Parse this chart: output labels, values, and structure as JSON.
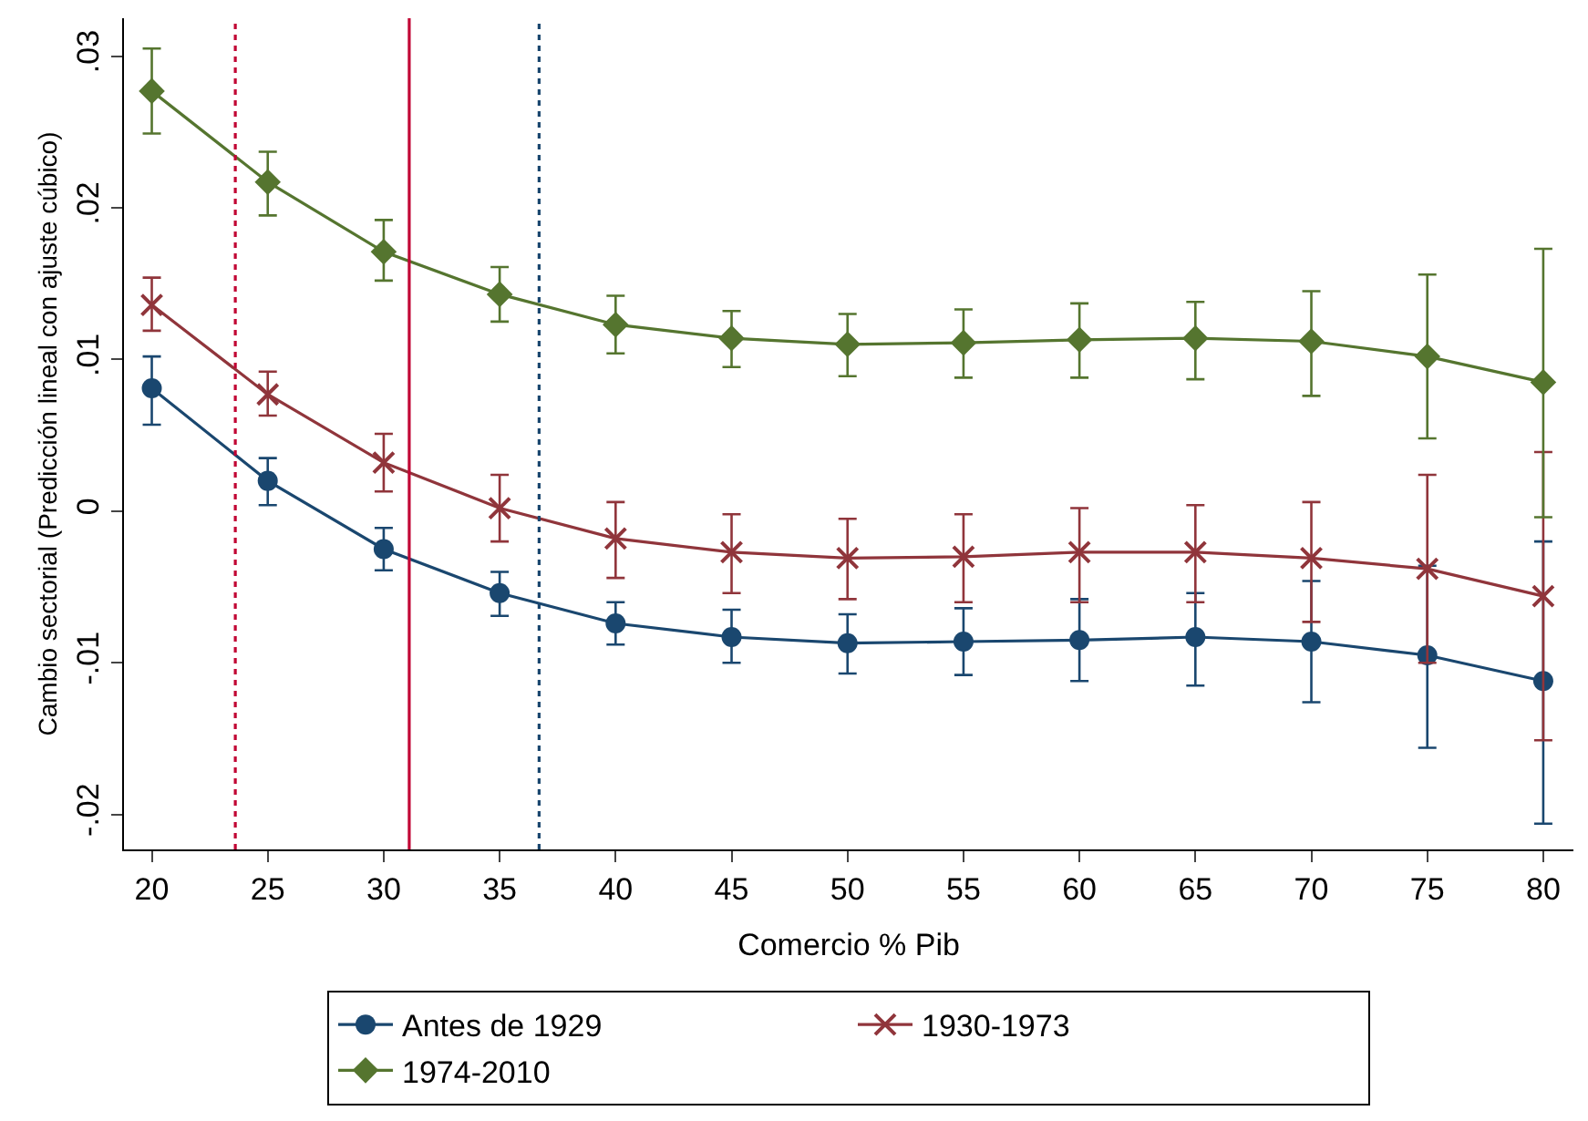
{
  "chart_data": {
    "type": "line",
    "xlabel": "Comercio % Pib",
    "ylabel": "Cambio sectorial (Predicción lineal con ajuste cúbico)",
    "x": [
      20,
      25,
      30,
      35,
      40,
      45,
      50,
      55,
      60,
      65,
      70,
      75,
      80
    ],
    "xlim": [
      18.8,
      81.3
    ],
    "xticks": [
      20,
      25,
      30,
      35,
      40,
      45,
      50,
      55,
      60,
      65,
      70,
      75,
      80
    ],
    "ylim": [
      -0.0223,
      0.0325
    ],
    "yticks": [
      {
        "value": -0.02,
        "label": "-.02"
      },
      {
        "value": -0.01,
        "label": "-.01"
      },
      {
        "value": 0,
        "label": "0"
      },
      {
        "value": 0.01,
        "label": ".01"
      },
      {
        "value": 0.02,
        "label": ".02"
      },
      {
        "value": 0.03,
        "label": ".03"
      }
    ],
    "legend": "bottom",
    "series": [
      {
        "name": "Antes de 1929",
        "color": "#1a476f",
        "marker": "circle",
        "values": [
          0.0081,
          0.002,
          -0.0025,
          -0.0054,
          -0.0074,
          -0.0083,
          -0.0087,
          -0.0086,
          -0.0085,
          -0.0083,
          -0.0086,
          -0.0095,
          -0.0112
        ],
        "errors": [
          [
            0.0057,
            0.0102
          ],
          [
            0.0004,
            0.0035
          ],
          [
            -0.0039,
            -0.0011
          ],
          [
            -0.0069,
            -0.004
          ],
          [
            -0.0088,
            -0.006
          ],
          [
            -0.01,
            -0.0065
          ],
          [
            -0.0107,
            -0.0068
          ],
          [
            -0.0108,
            -0.0064
          ],
          [
            -0.0112,
            -0.0058
          ],
          [
            -0.0115,
            -0.0054
          ],
          [
            -0.0126,
            -0.0046
          ],
          [
            -0.0156,
            -0.0036
          ],
          [
            -0.0206,
            -0.002
          ]
        ]
      },
      {
        "name": "1930-1973",
        "color": "#90353b",
        "marker": "cross",
        "values": [
          0.0136,
          0.0077,
          0.0032,
          0.0002,
          -0.0018,
          -0.0027,
          -0.0031,
          -0.003,
          -0.0027,
          -0.0027,
          -0.0031,
          -0.0038,
          -0.0056
        ],
        "errors": [
          [
            0.0119,
            0.0154
          ],
          [
            0.0063,
            0.0092
          ],
          [
            0.0013,
            0.0051
          ],
          [
            -0.002,
            0.0024
          ],
          [
            -0.0044,
            0.0006
          ],
          [
            -0.0054,
            -0.0002
          ],
          [
            -0.0058,
            -0.0005
          ],
          [
            -0.006,
            -0.0002
          ],
          [
            -0.006,
            0.0002
          ],
          [
            -0.006,
            0.0004
          ],
          [
            -0.0073,
            0.0006
          ],
          [
            -0.01,
            0.0024
          ],
          [
            -0.0151,
            0.0039
          ]
        ]
      },
      {
        "name": "1974-2010",
        "color": "#55752f",
        "marker": "diamond",
        "values": [
          0.0277,
          0.0217,
          0.0171,
          0.0143,
          0.0123,
          0.0114,
          0.011,
          0.0111,
          0.0113,
          0.0114,
          0.0112,
          0.0102,
          0.0085
        ],
        "errors": [
          [
            0.0249,
            0.0305
          ],
          [
            0.0195,
            0.0237
          ],
          [
            0.0152,
            0.0192
          ],
          [
            0.0125,
            0.0161
          ],
          [
            0.0104,
            0.0142
          ],
          [
            0.0095,
            0.0132
          ],
          [
            0.0089,
            0.013
          ],
          [
            0.0088,
            0.0133
          ],
          [
            0.0088,
            0.0137
          ],
          [
            0.0087,
            0.0138
          ],
          [
            0.0076,
            0.0145
          ],
          [
            0.0048,
            0.0156
          ],
          [
            -0.0004,
            0.0173
          ]
        ]
      }
    ],
    "ref_lines": [
      {
        "axis": "x",
        "value": 23.6,
        "color": "#c10534",
        "line_style": "dotted"
      },
      {
        "axis": "x",
        "value": 31.1,
        "color": "#c10534",
        "line_style": "solid"
      },
      {
        "axis": "x",
        "value": 36.7,
        "color": "#1a476f",
        "line_style": "dotted"
      }
    ]
  }
}
